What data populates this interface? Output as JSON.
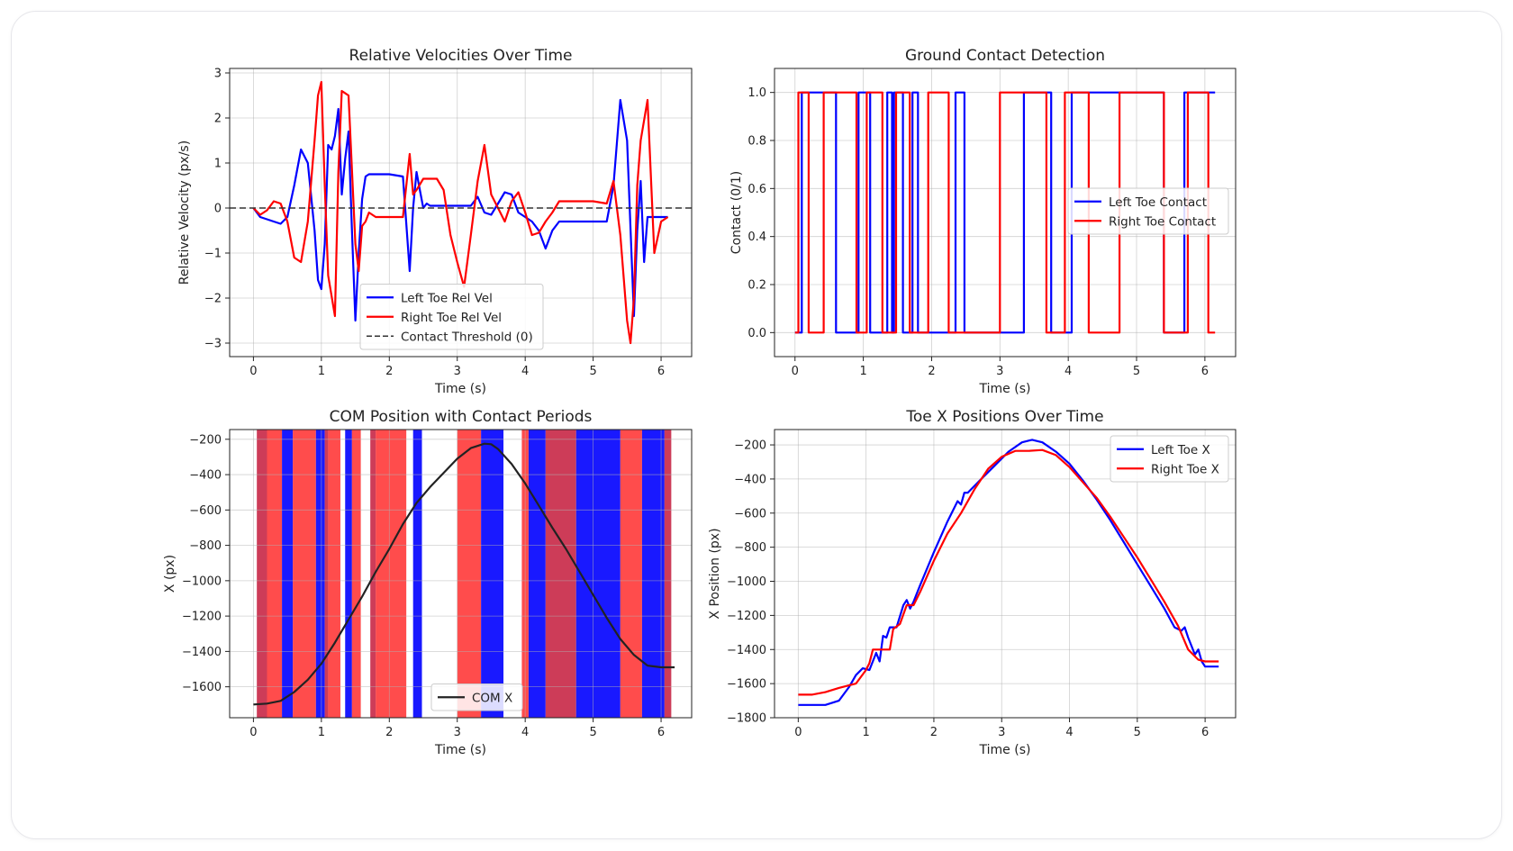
{
  "chart_data": [
    {
      "id": "rel-vel",
      "type": "line",
      "title": "Relative Velocities Over Time",
      "xlabel": "Time (s)",
      "ylabel": "Relative Velocity (px/s)",
      "xlim": [
        -0.35,
        6.45
      ],
      "ylim": [
        -3.3,
        3.1
      ],
      "xticks": [
        0,
        1,
        2,
        3,
        4,
        5,
        6
      ],
      "yticks": [
        -3,
        -2,
        -1,
        0,
        1,
        2,
        3
      ],
      "ytick_labels": [
        "−3",
        "−2",
        "−1",
        "0",
        "1",
        "2",
        "3"
      ],
      "grid": true,
      "legend_position": "lower-center",
      "series": [
        {
          "name": "Left Toe Rel Vel",
          "color": "#0000ff",
          "style": "solid",
          "x": [
            0,
            0.1,
            0.3,
            0.4,
            0.5,
            0.6,
            0.7,
            0.8,
            0.9,
            0.95,
            1.0,
            1.05,
            1.1,
            1.15,
            1.2,
            1.25,
            1.3,
            1.35,
            1.4,
            1.45,
            1.5,
            1.55,
            1.6,
            1.65,
            1.7,
            1.75,
            1.8,
            1.85,
            1.9,
            2.0,
            2.2,
            2.3,
            2.35,
            2.4,
            2.45,
            2.5,
            2.55,
            2.6,
            2.7,
            2.8,
            2.9,
            3.0,
            3.2,
            3.3,
            3.4,
            3.5,
            3.6,
            3.7,
            3.8,
            3.9,
            4.0,
            4.1,
            4.2,
            4.3,
            4.4,
            4.5,
            4.6,
            4.7,
            4.8,
            5.0,
            5.2,
            5.3,
            5.4,
            5.5,
            5.6,
            5.65,
            5.7,
            5.75,
            5.8,
            5.85,
            5.9,
            6.0,
            6.1
          ],
          "y": [
            0,
            -0.2,
            -0.3,
            -0.35,
            -0.2,
            0.5,
            1.3,
            1.0,
            -0.5,
            -1.6,
            -1.8,
            -0.8,
            1.4,
            1.3,
            1.6,
            2.2,
            0.3,
            1.1,
            1.7,
            -0.5,
            -2.5,
            -1.0,
            0.2,
            0.7,
            0.75,
            0.75,
            0.75,
            0.75,
            0.75,
            0.75,
            0.7,
            -1.4,
            0.0,
            0.8,
            0.4,
            0.0,
            0.1,
            0.05,
            0.05,
            0.05,
            0.05,
            0.05,
            0.05,
            0.25,
            -0.1,
            -0.15,
            0.1,
            0.35,
            0.3,
            -0.1,
            -0.2,
            -0.3,
            -0.5,
            -0.9,
            -0.5,
            -0.3,
            -0.3,
            -0.3,
            -0.3,
            -0.3,
            -0.3,
            0.5,
            2.4,
            1.5,
            -2.4,
            -0.5,
            0.6,
            -1.2,
            -0.2,
            -0.2,
            -0.2,
            -0.2,
            -0.2
          ],
          "y_note": "estimated"
        },
        {
          "name": "Right Toe Rel Vel",
          "color": "#ff0000",
          "style": "solid",
          "x": [
            0,
            0.1,
            0.2,
            0.3,
            0.4,
            0.5,
            0.6,
            0.7,
            0.8,
            0.9,
            0.95,
            1.0,
            1.05,
            1.1,
            1.2,
            1.25,
            1.3,
            1.4,
            1.5,
            1.55,
            1.6,
            1.65,
            1.7,
            1.8,
            1.9,
            2.0,
            2.1,
            2.2,
            2.3,
            2.35,
            2.4,
            2.5,
            2.6,
            2.7,
            2.8,
            2.9,
            3.0,
            3.1,
            3.2,
            3.3,
            3.4,
            3.5,
            3.6,
            3.7,
            3.8,
            3.9,
            4.0,
            4.1,
            4.2,
            4.3,
            4.4,
            4.5,
            4.6,
            4.7,
            4.8,
            5.0,
            5.2,
            5.3,
            5.4,
            5.5,
            5.55,
            5.6,
            5.65,
            5.7,
            5.8,
            5.9,
            6.0,
            6.1
          ],
          "y": [
            0,
            -0.15,
            -0.05,
            0.15,
            0.1,
            -0.3,
            -1.1,
            -1.2,
            -0.3,
            1.5,
            2.5,
            2.8,
            0.5,
            -1.5,
            -2.4,
            0.8,
            2.6,
            2.5,
            -0.8,
            -1.4,
            -0.4,
            -0.3,
            -0.1,
            -0.2,
            -0.2,
            -0.2,
            -0.2,
            -0.2,
            1.2,
            0.3,
            0.4,
            0.65,
            0.65,
            0.65,
            0.4,
            -0.6,
            -1.2,
            -1.75,
            -0.6,
            0.6,
            1.4,
            0.3,
            0.0,
            -0.3,
            0.15,
            0.35,
            -0.1,
            -0.6,
            -0.55,
            -0.3,
            -0.1,
            0.15,
            0.15,
            0.15,
            0.15,
            0.15,
            0.1,
            0.6,
            -0.6,
            -2.5,
            -3.0,
            -2.0,
            0.5,
            1.5,
            2.4,
            -1.0,
            -0.3,
            -0.2
          ],
          "y_note": "estimated"
        },
        {
          "name": "Contact Threshold (0)",
          "color": "#333333",
          "style": "dashed",
          "x": [
            -0.35,
            6.45
          ],
          "y": [
            0,
            0
          ]
        }
      ]
    },
    {
      "id": "contact",
      "type": "line",
      "title": "Ground Contact Detection",
      "xlabel": "Time (s)",
      "ylabel": "Contact (0/1)",
      "xlim": [
        -0.3,
        6.45
      ],
      "ylim": [
        -0.1,
        1.1
      ],
      "xticks": [
        0,
        1,
        2,
        3,
        4,
        5,
        6
      ],
      "yticks": [
        0.0,
        0.2,
        0.4,
        0.6,
        0.8,
        1.0
      ],
      "ytick_labels": [
        "0.0",
        "0.2",
        "0.4",
        "0.6",
        "0.8",
        "1.0"
      ],
      "grid": true,
      "legend_position": "center-right",
      "series": [
        {
          "name": "Left Toe Contact",
          "color": "#0000ff",
          "steps": [
            [
              0,
              0
            ],
            [
              0.1,
              1
            ],
            [
              0.6,
              0
            ],
            [
              0.93,
              1
            ],
            [
              1.1,
              0
            ],
            [
              1.35,
              1
            ],
            [
              1.42,
              0
            ],
            [
              1.45,
              1
            ],
            [
              1.58,
              0
            ],
            [
              1.72,
              1
            ],
            [
              1.8,
              0
            ],
            [
              2.35,
              1
            ],
            [
              2.48,
              0
            ],
            [
              3.35,
              1
            ],
            [
              3.75,
              0
            ],
            [
              4.05,
              1
            ],
            [
              5.4,
              0
            ],
            [
              5.7,
              1
            ],
            [
              6.15,
              1
            ]
          ]
        },
        {
          "name": "Right Toe Contact",
          "color": "#ff0000",
          "steps": [
            [
              0,
              0
            ],
            [
              0.05,
              1
            ],
            [
              0.2,
              0
            ],
            [
              0.42,
              1
            ],
            [
              0.9,
              0
            ],
            [
              1.05,
              1
            ],
            [
              1.28,
              0
            ],
            [
              1.48,
              1
            ],
            [
              1.68,
              0
            ],
            [
              1.95,
              1
            ],
            [
              2.25,
              0
            ],
            [
              3.0,
              1
            ],
            [
              3.68,
              0
            ],
            [
              3.95,
              1
            ],
            [
              4.3,
              0
            ],
            [
              4.75,
              1
            ],
            [
              5.4,
              0
            ],
            [
              5.75,
              1
            ],
            [
              6.05,
              0
            ],
            [
              6.15,
              0
            ]
          ]
        }
      ]
    },
    {
      "id": "com",
      "type": "line",
      "title": "COM Position with Contact Periods",
      "xlabel": "Time (s)",
      "ylabel": "X (px)",
      "xlim": [
        -0.35,
        6.45
      ],
      "ylim": [
        -1775,
        -145
      ],
      "xticks": [
        0,
        1,
        2,
        3,
        4,
        5,
        6
      ],
      "yticks": [
        -200,
        -400,
        -600,
        -800,
        -1000,
        -1200,
        -1400,
        -1600
      ],
      "ytick_labels": [
        "−200",
        "−400",
        "−600",
        "−800",
        "−1000",
        "−1200",
        "−1400",
        "−1600"
      ],
      "grid": true,
      "legend_position": "lower-center",
      "contact_bands": {
        "left_color": "#0000ff",
        "right_color": "#ff0000",
        "overlap_color": "#c41a3b",
        "bands": [
          [
            "overlap",
            0.05,
            0.2
          ],
          [
            "right",
            0.2,
            0.42
          ],
          [
            "left",
            0.42,
            0.58
          ],
          [
            "right",
            0.58,
            0.92
          ],
          [
            "left",
            0.92,
            1.05
          ],
          [
            "overlap",
            1.05,
            1.1
          ],
          [
            "right",
            1.1,
            1.28
          ],
          [
            "left",
            1.35,
            1.45
          ],
          [
            "right",
            1.45,
            1.58
          ],
          [
            "overlap",
            1.72,
            1.8
          ],
          [
            "right",
            1.8,
            2.25
          ],
          [
            "left",
            2.35,
            2.48
          ],
          [
            "right",
            3.0,
            3.35
          ],
          [
            "left",
            3.35,
            3.68
          ],
          [
            "right",
            3.95,
            4.05
          ],
          [
            "left",
            4.05,
            4.3
          ],
          [
            "overlap",
            4.3,
            4.75
          ],
          [
            "left",
            4.75,
            5.4
          ],
          [
            "right",
            5.4,
            5.72
          ],
          [
            "left",
            5.72,
            6.05
          ],
          [
            "overlap",
            6.05,
            6.15
          ]
        ]
      },
      "series": [
        {
          "name": "COM X",
          "color": "#222222",
          "style": "solid",
          "x": [
            0,
            0.2,
            0.4,
            0.6,
            0.8,
            1.0,
            1.2,
            1.4,
            1.6,
            1.8,
            2.0,
            2.2,
            2.4,
            2.6,
            2.8,
            3.0,
            3.2,
            3.4,
            3.5,
            3.6,
            3.8,
            4.0,
            4.2,
            4.4,
            4.6,
            4.8,
            5.0,
            5.2,
            5.4,
            5.6,
            5.8,
            6.0,
            6.2
          ],
          "y": [
            -1700,
            -1695,
            -1680,
            -1630,
            -1560,
            -1470,
            -1350,
            -1220,
            -1090,
            -950,
            -820,
            -680,
            -560,
            -470,
            -390,
            -310,
            -250,
            -225,
            -228,
            -255,
            -340,
            -450,
            -575,
            -700,
            -820,
            -950,
            -1080,
            -1210,
            -1330,
            -1420,
            -1480,
            -1490,
            -1490
          ],
          "y_note": "estimated"
        }
      ]
    },
    {
      "id": "toe-x",
      "type": "line",
      "title": "Toe X Positions Over Time",
      "xlabel": "Time (s)",
      "ylabel": "X Position (px)",
      "xlim": [
        -0.35,
        6.45
      ],
      "ylim": [
        -1800,
        -110
      ],
      "xticks": [
        0,
        1,
        2,
        3,
        4,
        5,
        6
      ],
      "yticks": [
        -200,
        -400,
        -600,
        -800,
        -1000,
        -1200,
        -1400,
        -1600,
        -1800
      ],
      "ytick_labels": [
        "−200",
        "−400",
        "−600",
        "−800",
        "−1000",
        "−1200",
        "−1400",
        "−1600",
        "−1800"
      ],
      "grid": true,
      "legend_position": "upper-right",
      "series": [
        {
          "name": "Left Toe X",
          "color": "#0000ff",
          "style": "solid",
          "x": [
            0,
            0.4,
            0.6,
            0.75,
            0.85,
            0.95,
            1.05,
            1.15,
            1.2,
            1.25,
            1.3,
            1.35,
            1.45,
            1.55,
            1.6,
            1.65,
            1.7,
            1.8,
            2.0,
            2.2,
            2.35,
            2.4,
            2.45,
            2.5,
            2.7,
            2.9,
            3.1,
            3.3,
            3.45,
            3.6,
            3.8,
            4.0,
            4.2,
            4.4,
            4.6,
            4.8,
            5.0,
            5.2,
            5.4,
            5.55,
            5.65,
            5.7,
            5.75,
            5.8,
            5.85,
            5.9,
            5.95,
            6.0,
            6.2
          ],
          "y": [
            -1725,
            -1725,
            -1700,
            -1620,
            -1550,
            -1510,
            -1520,
            -1420,
            -1470,
            -1320,
            -1330,
            -1270,
            -1270,
            -1140,
            -1110,
            -1160,
            -1120,
            -1020,
            -830,
            -650,
            -530,
            -550,
            -480,
            -480,
            -400,
            -320,
            -240,
            -185,
            -170,
            -185,
            -240,
            -310,
            -410,
            -520,
            -640,
            -770,
            -900,
            -1030,
            -1160,
            -1270,
            -1290,
            -1270,
            -1330,
            -1380,
            -1430,
            -1400,
            -1470,
            -1500,
            -1500
          ],
          "y_note": "estimated"
        },
        {
          "name": "Right Toe X",
          "color": "#ff0000",
          "style": "solid",
          "x": [
            0,
            0.2,
            0.4,
            0.6,
            0.85,
            1.0,
            1.05,
            1.1,
            1.2,
            1.35,
            1.4,
            1.5,
            1.6,
            1.7,
            1.8,
            2.0,
            2.2,
            2.4,
            2.6,
            2.8,
            3.0,
            3.2,
            3.4,
            3.6,
            3.8,
            4.0,
            4.2,
            4.4,
            4.6,
            4.8,
            5.0,
            5.2,
            5.4,
            5.6,
            5.75,
            5.9,
            6.0,
            6.2
          ],
          "y": [
            -1665,
            -1665,
            -1650,
            -1625,
            -1600,
            -1520,
            -1480,
            -1400,
            -1400,
            -1400,
            -1280,
            -1250,
            -1140,
            -1140,
            -1060,
            -880,
            -720,
            -600,
            -460,
            -340,
            -270,
            -235,
            -235,
            -230,
            -260,
            -330,
            -420,
            -510,
            -620,
            -740,
            -860,
            -990,
            -1120,
            -1260,
            -1400,
            -1460,
            -1470,
            -1470
          ],
          "y_note": "estimated"
        }
      ]
    }
  ]
}
